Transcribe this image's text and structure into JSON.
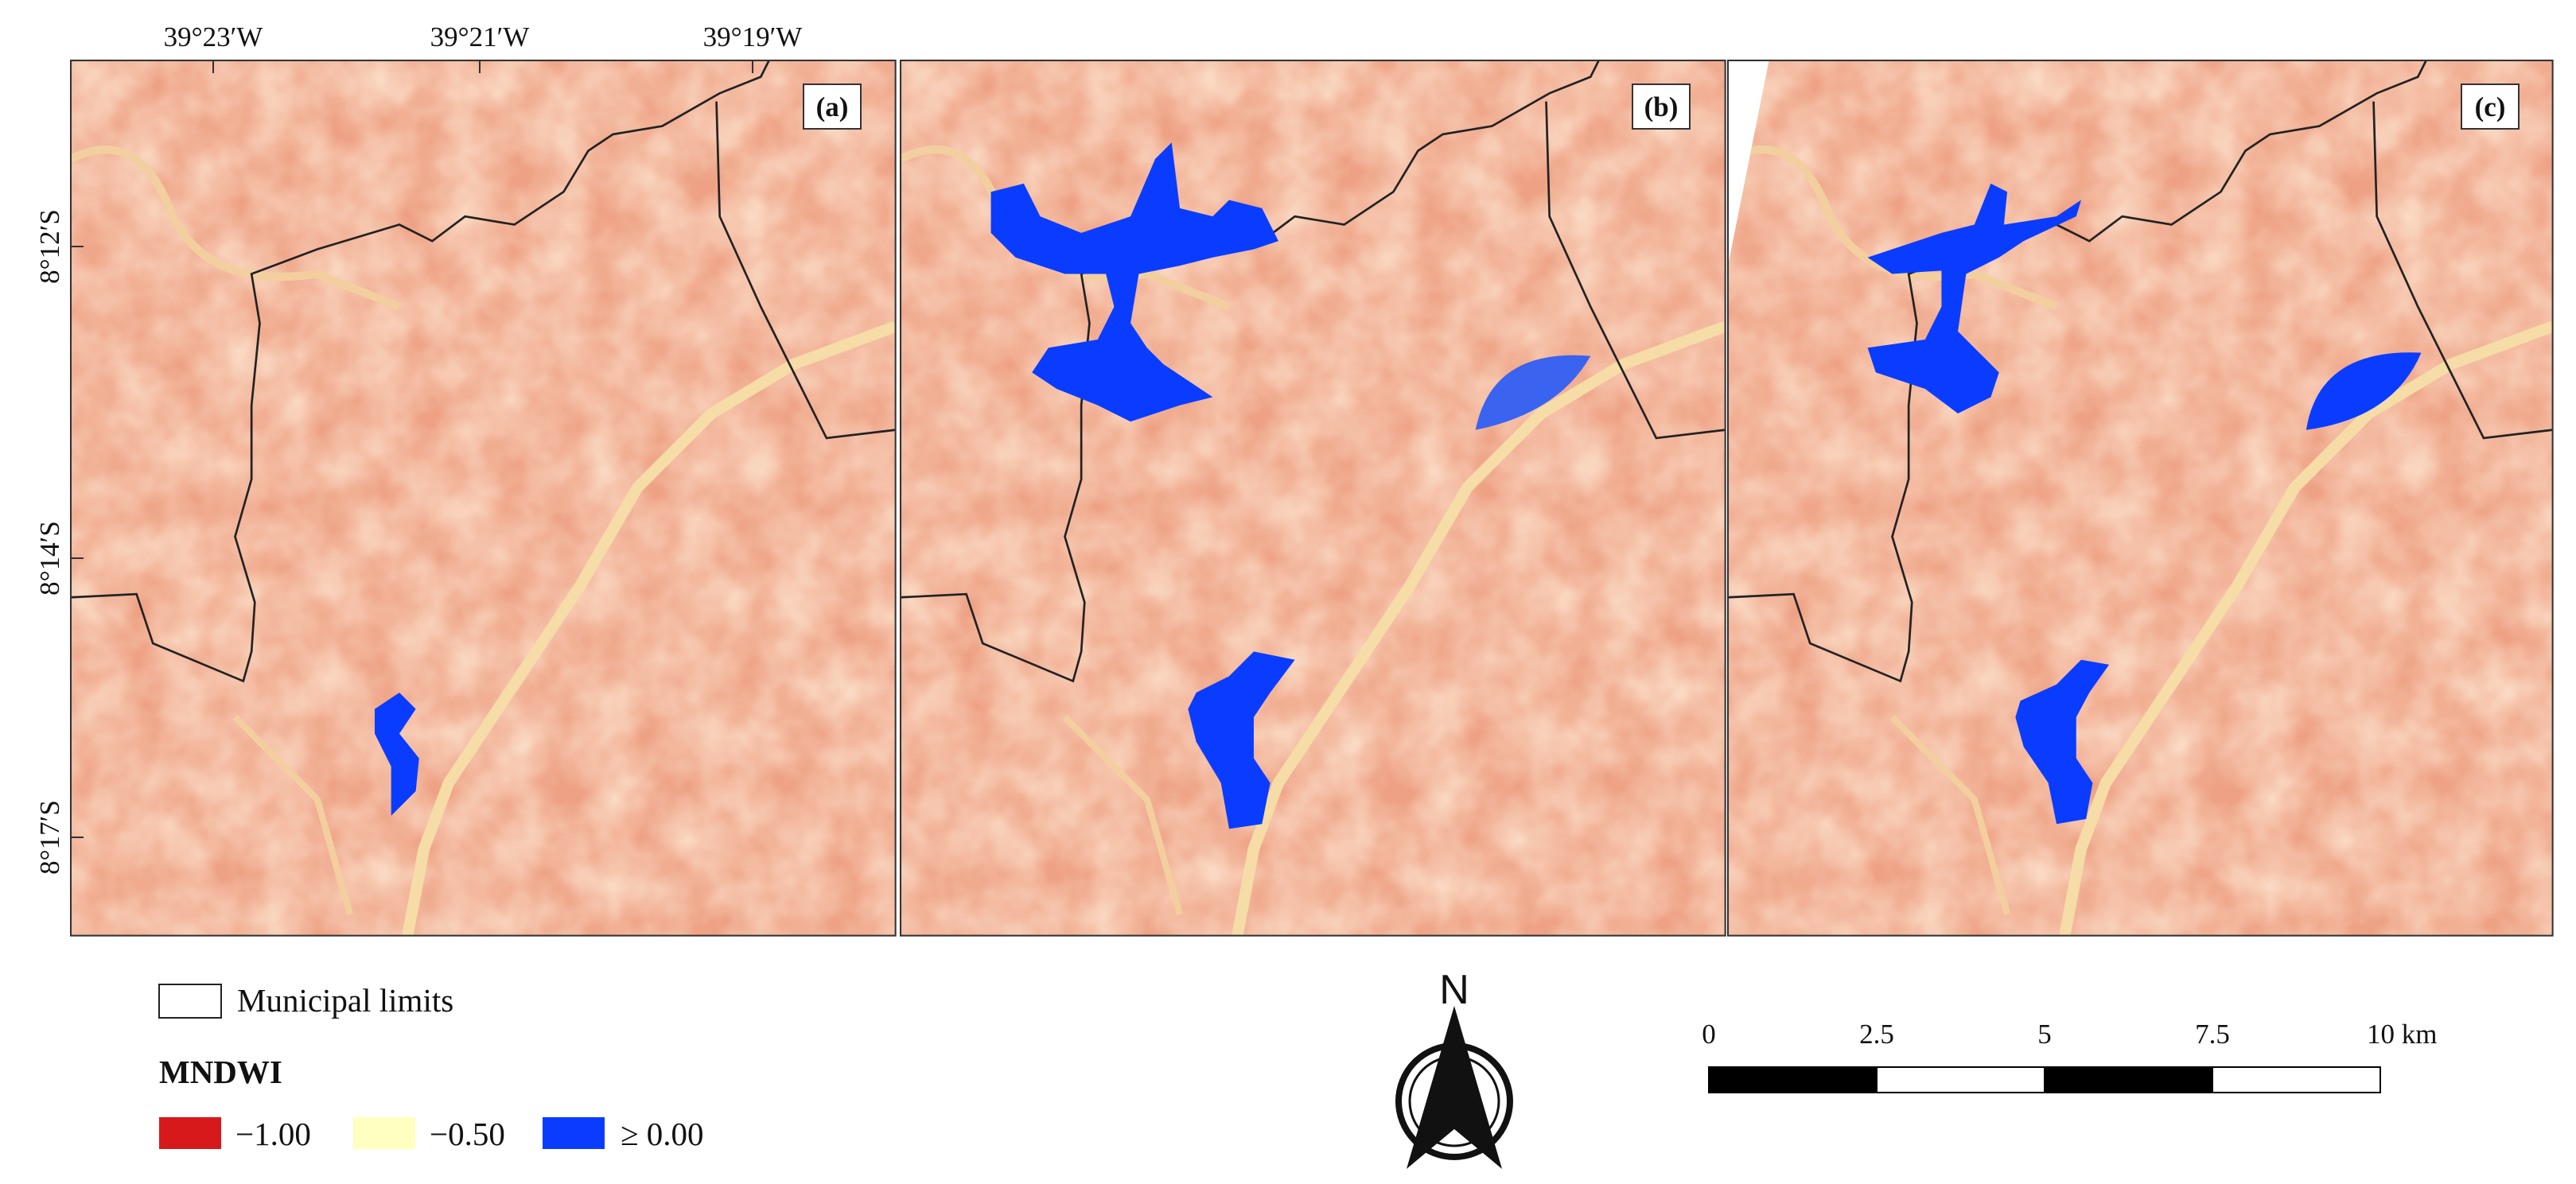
{
  "axes": {
    "longitude_labels": [
      "39°23′W",
      "39°21′W",
      "39°19′W"
    ],
    "latitude_labels": [
      "8°12′S",
      "8°14′S",
      "8°17′S"
    ]
  },
  "panels": [
    {
      "label": "(a)"
    },
    {
      "label": "(b)"
    },
    {
      "label": "(c)"
    }
  ],
  "legend": {
    "boundary_label": "Municipal limits",
    "index_title": "MNDWI",
    "classes": [
      {
        "label": "−1.00",
        "color": "#d7191c"
      },
      {
        "label": "−0.50",
        "color": "#ffffbf"
      },
      {
        "label": "≥ 0.00",
        "color": "#0a3cff"
      }
    ]
  },
  "north_arrow": {
    "label": "N"
  },
  "scale_bar": {
    "labels": [
      "0",
      "2.5",
      "5",
      "7.5",
      "10 km"
    ]
  }
}
